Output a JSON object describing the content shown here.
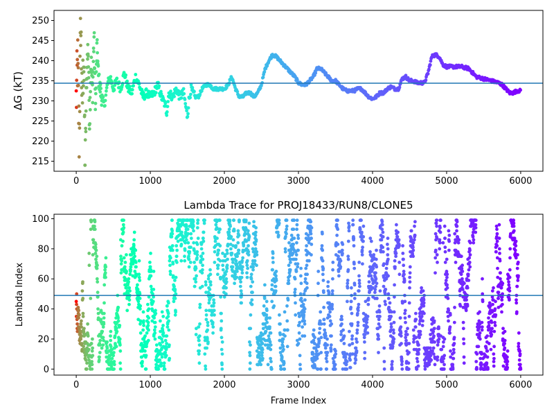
{
  "chart_data": [
    {
      "type": "scatter",
      "title": "",
      "xlabel": "",
      "ylabel": "ΔG (kT)",
      "xlim": [
        -300,
        6300
      ],
      "ylim": [
        212.5,
        252.5
      ],
      "xticks": [
        "0",
        "1000",
        "2000",
        "3000",
        "4000",
        "5000",
        "6000"
      ],
      "yticks": [
        "215",
        "220",
        "225",
        "230",
        "235",
        "240",
        "245",
        "250"
      ],
      "grid": false,
      "colormap": "rainbow (red at start of run, purple at end)",
      "reference_line": {
        "y": 234.4,
        "color": "#1f77b4"
      },
      "trace_points": [
        [
          0,
          230
        ],
        [
          20,
          240
        ],
        [
          40,
          220
        ],
        [
          60,
          250
        ],
        [
          80,
          228
        ],
        [
          100,
          242
        ],
        [
          120,
          214
        ],
        [
          140,
          236
        ],
        [
          160,
          244
        ],
        [
          180,
          225
        ],
        [
          200,
          240
        ],
        [
          220,
          232
        ],
        [
          240,
          246
        ],
        [
          260,
          228
        ],
        [
          280,
          244
        ],
        [
          300,
          236
        ],
        [
          340,
          231
        ],
        [
          380,
          229
        ],
        [
          420,
          234
        ],
        [
          460,
          236
        ],
        [
          500,
          233
        ],
        [
          550,
          235
        ],
        [
          600,
          233
        ],
        [
          650,
          237
        ],
        [
          700,
          233
        ],
        [
          750,
          232
        ],
        [
          800,
          236
        ],
        [
          850,
          234
        ],
        [
          900,
          231
        ],
        [
          950,
          232
        ],
        [
          1000,
          231
        ],
        [
          1050,
          232
        ],
        [
          1100,
          234
        ],
        [
          1150,
          231
        ],
        [
          1200,
          229
        ],
        [
          1220,
          227
        ],
        [
          1250,
          232
        ],
        [
          1300,
          231
        ],
        [
          1350,
          233
        ],
        [
          1400,
          231
        ],
        [
          1450,
          232
        ],
        [
          1500,
          226
        ],
        [
          1520,
          230
        ],
        [
          1550,
          233
        ],
        [
          1600,
          231
        ],
        [
          1650,
          231
        ],
        [
          1700,
          233
        ],
        [
          1750,
          234
        ],
        [
          1800,
          234
        ],
        [
          1850,
          233
        ],
        [
          1900,
          233
        ],
        [
          1950,
          233
        ],
        [
          2000,
          233
        ],
        [
          2050,
          234
        ],
        [
          2100,
          236
        ],
        [
          2150,
          233
        ],
        [
          2200,
          231
        ],
        [
          2250,
          231
        ],
        [
          2300,
          232
        ],
        [
          2350,
          232
        ],
        [
          2400,
          231
        ],
        [
          2450,
          232
        ],
        [
          2500,
          234
        ],
        [
          2550,
          238
        ],
        [
          2600,
          240
        ],
        [
          2650,
          241.5
        ],
        [
          2700,
          241
        ],
        [
          2750,
          240
        ],
        [
          2800,
          239
        ],
        [
          2850,
          238
        ],
        [
          2900,
          237
        ],
        [
          2950,
          236
        ],
        [
          3000,
          234.5
        ],
        [
          3050,
          234
        ],
        [
          3100,
          234
        ],
        [
          3150,
          235
        ],
        [
          3200,
          236
        ],
        [
          3250,
          238
        ],
        [
          3300,
          238
        ],
        [
          3350,
          237
        ],
        [
          3400,
          236
        ],
        [
          3450,
          235
        ],
        [
          3500,
          235
        ],
        [
          3550,
          234
        ],
        [
          3600,
          233
        ],
        [
          3650,
          232.5
        ],
        [
          3700,
          232.5
        ],
        [
          3750,
          232.5
        ],
        [
          3800,
          233
        ],
        [
          3850,
          233
        ],
        [
          3900,
          232
        ],
        [
          3950,
          231
        ],
        [
          4000,
          230.5
        ],
        [
          4050,
          231
        ],
        [
          4100,
          232
        ],
        [
          4150,
          232
        ],
        [
          4200,
          233
        ],
        [
          4250,
          233.5
        ],
        [
          4300,
          233
        ],
        [
          4350,
          233
        ],
        [
          4400,
          235.5
        ],
        [
          4450,
          236
        ],
        [
          4500,
          235
        ],
        [
          4550,
          235
        ],
        [
          4600,
          234.5
        ],
        [
          4650,
          234.5
        ],
        [
          4700,
          234.5
        ],
        [
          4750,
          237
        ],
        [
          4800,
          241
        ],
        [
          4850,
          241.5
        ],
        [
          4900,
          241
        ],
        [
          4950,
          239
        ],
        [
          5000,
          238.5
        ],
        [
          5100,
          238.5
        ],
        [
          5200,
          238.5
        ],
        [
          5300,
          238
        ],
        [
          5400,
          236
        ],
        [
          5500,
          235.5
        ],
        [
          5600,
          235
        ],
        [
          5700,
          234.5
        ],
        [
          5750,
          234
        ],
        [
          5800,
          233
        ],
        [
          5850,
          232
        ],
        [
          5900,
          232
        ],
        [
          5950,
          232.5
        ],
        [
          6000,
          232.5
        ]
      ]
    },
    {
      "type": "scatter",
      "title": "Lambda Trace for PROJ18433/RUN8/CLONE5",
      "xlabel": "Frame Index",
      "ylabel": "Lambda Index",
      "xlim": [
        -300,
        6300
      ],
      "ylim": [
        -4,
        103
      ],
      "xticks": [
        "0",
        "1000",
        "2000",
        "3000",
        "4000",
        "5000",
        "6000"
      ],
      "yticks": [
        "0",
        "20",
        "40",
        "60",
        "80",
        "100"
      ],
      "grid": false,
      "colormap": "rainbow (red at start of run, purple at end)",
      "reference_line": {
        "y": 49,
        "color": "#1f77b4"
      },
      "n_points_approx": 6000,
      "lambda_range": [
        0,
        99
      ]
    }
  ]
}
